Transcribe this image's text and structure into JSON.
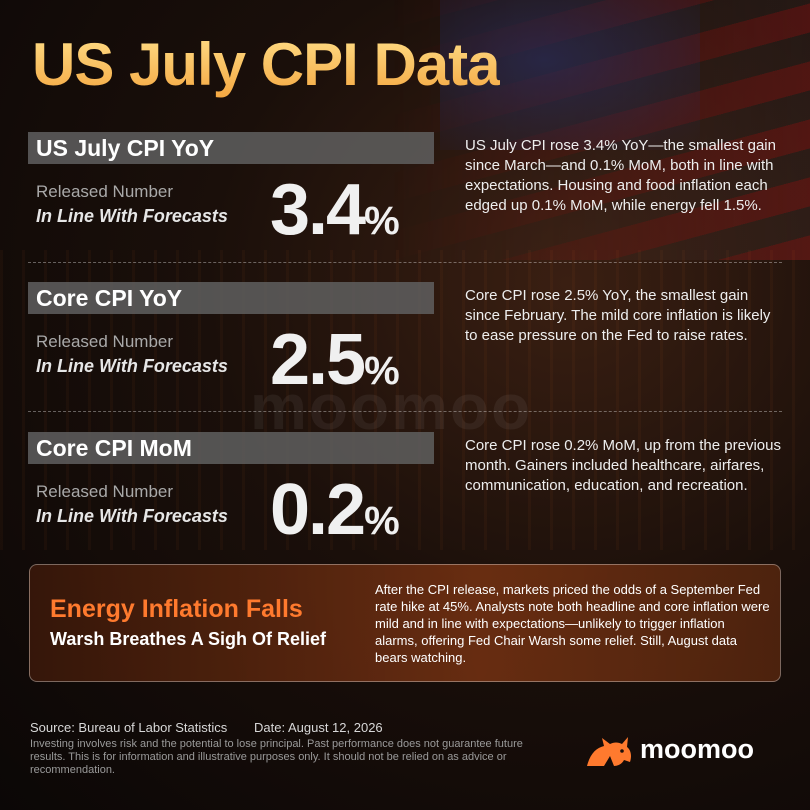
{
  "title": "US July CPI Data",
  "sections": [
    {
      "header": "US July CPI YoY",
      "released_label": "Released Number",
      "forecast_label": "In Line With Forecasts",
      "value": "3.4",
      "unit": "%",
      "description": "US July CPI rose 3.4% YoY—the smallest gain since March—and 0.1% MoM, both in line with expectations. Housing and food inflation each edged up 0.1% MoM, while energy fell 1.5%."
    },
    {
      "header": "Core CPI YoY",
      "released_label": "Released Number",
      "forecast_label": "In Line With Forecasts",
      "value": "2.5",
      "unit": "%",
      "description": "Core CPI rose 2.5% YoY, the smallest gain since February. The mild core inflation is likely to ease pressure on the Fed to raise rates."
    },
    {
      "header": "Core CPI MoM",
      "released_label": "Released Number",
      "forecast_label": "In Line With Forecasts",
      "value": "0.2",
      "unit": "%",
      "description": "Core CPI rose 0.2% MoM, up from the previous month. Gainers included healthcare, airfares, communication, education, and recreation."
    }
  ],
  "callout": {
    "title": "Energy Inflation Falls",
    "subtitle": "Warsh Breathes A Sigh Of Relief",
    "text": "After the CPI release, markets priced the odds of a September Fed rate hike at 45%. Analysts note both headline and core inflation were mild and in line with expectations—unlikely to trigger inflation alarms, offering Fed Chair Warsh some relief. Still, August data bears watching."
  },
  "footer": {
    "source": "Source: Bureau of Labor Statistics",
    "date": "Date: August 12, 2026",
    "disclaimer": "Investing involves risk and the potential to lose principal. Past performance does not guarantee future results. This is for information and illustrative purposes only. It should not be relied on as advice or recommendation."
  },
  "brand": {
    "name": "moomoo",
    "watermark": "moomoo",
    "logo_icon": "moomoo-bull-icon",
    "accent_color": "#ff7a2e"
  }
}
